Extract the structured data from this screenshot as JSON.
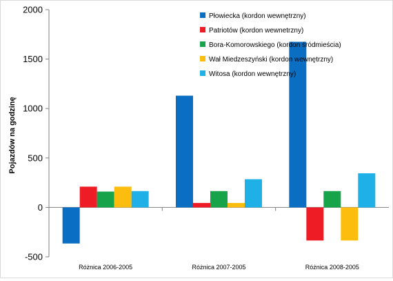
{
  "chart_data": {
    "type": "bar",
    "ylabel": "Pojazdów na godzinę",
    "xlabel": "",
    "ylim": [
      -500,
      2000
    ],
    "yticks": [
      -500,
      0,
      500,
      1000,
      1500,
      2000
    ],
    "grid": false,
    "legend_position": "top-right",
    "categories": [
      "Różnica 2006-2005",
      "Różnica 2007-2005",
      "Różnica 2008-2005"
    ],
    "series": [
      {
        "name": "Płowiecka (kordon wewnętrzny)",
        "color": "#0a6fc2",
        "values": [
          -365,
          1130,
          1675
        ]
      },
      {
        "name": "Patriotów (kordon wewnetrzny)",
        "color": "#ee1c25",
        "values": [
          210,
          45,
          -335
        ]
      },
      {
        "name": "Bora-Komorowskiego (kordon śródmieścia)",
        "color": "#17a34a",
        "values": [
          160,
          165,
          165
        ]
      },
      {
        "name": "Wał Miedzeszyński (kordon wewnętrzny)",
        "color": "#fcbd0f",
        "values": [
          210,
          45,
          -335
        ]
      },
      {
        "name": "Witosa (kordon wewnętrzny)",
        "color": "#1fb0e8",
        "values": [
          165,
          285,
          345
        ]
      }
    ]
  }
}
